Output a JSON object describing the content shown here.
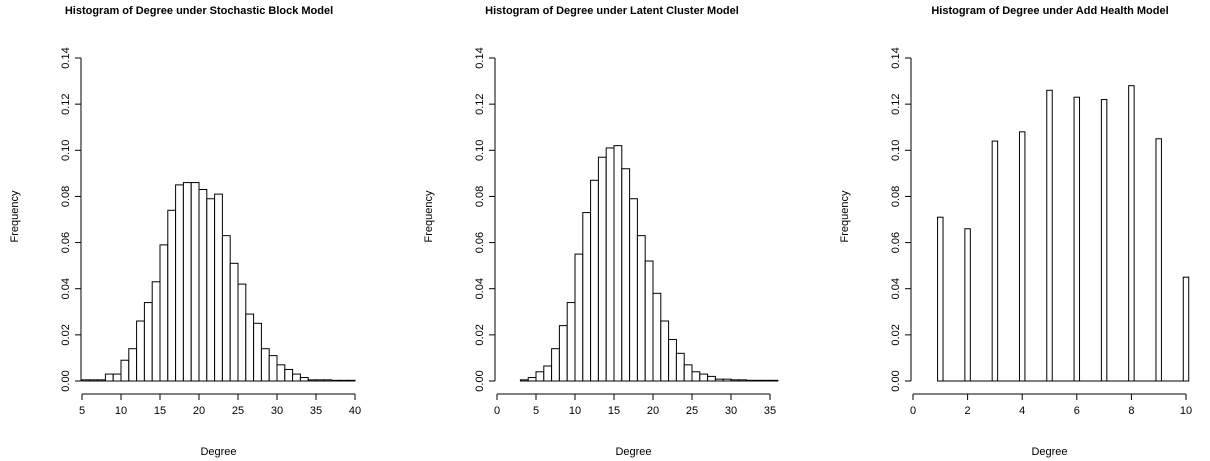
{
  "chart_data": [
    {
      "type": "bar",
      "title": "Histogram of Degree under Stochastic Block Model",
      "xlabel": "Degree",
      "ylabel": "Frequency",
      "xlim": [
        5,
        40
      ],
      "ylim": [
        0,
        0.14
      ],
      "xticks": [
        5,
        10,
        15,
        20,
        25,
        30,
        35,
        40
      ],
      "yticks": [
        "0.00",
        "0.02",
        "0.04",
        "0.06",
        "0.08",
        "0.10",
        "0.12",
        "0.14"
      ],
      "bin_width": 1,
      "bin_start": 5,
      "values": [
        0.0005,
        0.0005,
        0.0005,
        0.003,
        0.003,
        0.009,
        0.014,
        0.026,
        0.034,
        0.043,
        0.059,
        0.074,
        0.085,
        0.086,
        0.086,
        0.083,
        0.079,
        0.081,
        0.063,
        0.051,
        0.042,
        0.029,
        0.025,
        0.014,
        0.011,
        0.007,
        0.005,
        0.003,
        0.0015,
        0.0005,
        0.0005,
        0.0005,
        0.0003,
        0.0003,
        0.0003
      ]
    },
    {
      "type": "bar",
      "title": "Histogram of Degree under Latent Cluster Model",
      "xlabel": "Degree",
      "ylabel": "Frequency",
      "xlim": [
        0,
        35
      ],
      "ylim": [
        0,
        0.14
      ],
      "xticks": [
        0,
        5,
        10,
        15,
        20,
        25,
        30,
        35
      ],
      "yticks": [
        "0.00",
        "0.02",
        "0.04",
        "0.06",
        "0.08",
        "0.10",
        "0.12",
        "0.14"
      ],
      "bin_width": 1,
      "bin_start": 3,
      "values": [
        0.0005,
        0.0015,
        0.004,
        0.0065,
        0.014,
        0.024,
        0.034,
        0.055,
        0.073,
        0.087,
        0.097,
        0.101,
        0.102,
        0.092,
        0.079,
        0.063,
        0.052,
        0.038,
        0.026,
        0.018,
        0.012,
        0.007,
        0.004,
        0.003,
        0.002,
        0.0008,
        0.0008,
        0.0005,
        0.0005,
        0.0003,
        0.0003,
        0.0003,
        0.0003
      ]
    },
    {
      "type": "bar",
      "title": "Histogram of Degree under Add Health Model",
      "xlabel": "Degree",
      "ylabel": "Frequency",
      "xlim": [
        0,
        10
      ],
      "ylim": [
        0,
        0.14
      ],
      "xticks": [
        0,
        2,
        4,
        6,
        8,
        10
      ],
      "yticks": [
        "0.00",
        "0.02",
        "0.04",
        "0.06",
        "0.08",
        "0.10",
        "0.12",
        "0.14"
      ],
      "bar_width": 0.2,
      "x": [
        1,
        2,
        3,
        4,
        5,
        6,
        7,
        8,
        9,
        10
      ],
      "values": [
        0.071,
        0.066,
        0.104,
        0.108,
        0.126,
        0.123,
        0.122,
        0.128,
        0.105,
        0.045
      ]
    }
  ]
}
